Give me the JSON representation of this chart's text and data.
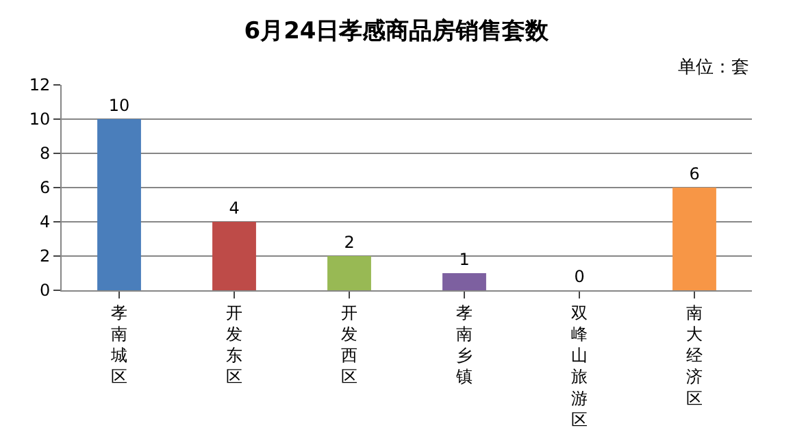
{
  "chart_data": {
    "type": "bar",
    "title": "6月24日孝感商品房销售套数",
    "annotations": [
      "单位：套"
    ],
    "categories": [
      "孝南城区",
      "开发东区",
      "开发西区",
      "孝南乡镇",
      "双峰山旅游区",
      "南大经济区"
    ],
    "values": [
      10,
      4,
      2,
      1,
      0,
      6
    ],
    "colors": [
      "#4a7ebb",
      "#be4b48",
      "#98b954",
      "#7d60a0",
      "#46aac5",
      "#f79646"
    ],
    "ylim": [
      0,
      12
    ],
    "yticks": [
      0,
      2,
      4,
      6,
      8,
      10,
      12
    ],
    "grid": "y",
    "data_labels": true,
    "legend": false
  }
}
